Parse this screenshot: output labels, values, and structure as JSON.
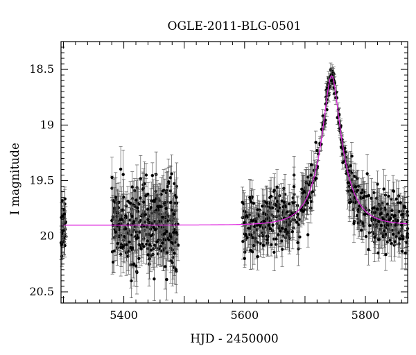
{
  "chart_data": {
    "type": "scatter",
    "title": "OGLE-2011-BLG-0501",
    "xlabel": "HJD - 2450000",
    "ylabel": "I magnitude",
    "xlim": [
      5296,
      5870
    ],
    "ylim": [
      20.6,
      18.25
    ],
    "y_inverted": true,
    "xticks": [
      5400,
      5600,
      5800
    ],
    "yticks": [
      18.5,
      19,
      19.5,
      20,
      20.5
    ],
    "xtick_labels": [
      "5400",
      "5600",
      "5800"
    ],
    "ytick_labels": [
      "18.5",
      "19",
      "19.5",
      "20",
      "20.5"
    ],
    "grid": false,
    "legend": "none",
    "series": [
      {
        "kind": "points-with-errorbars",
        "color": "#000000",
        "observing_seasons": [
          {
            "x_range": [
              5296,
              5304
            ],
            "mag_range": [
              19.75,
              20.15
            ],
            "typical_error": 0.1
          },
          {
            "x_range": [
              5380,
              5490
            ],
            "mag_range": [
              19.55,
              20.45
            ],
            "typical_error": 0.15
          },
          {
            "x_range": [
              5595,
              5870
            ],
            "baseline_mag": 19.85,
            "typical_error": 0.12
          }
        ],
        "points": [
          {
            "x": 5300,
            "y": 19.95
          },
          {
            "x": 5382,
            "y": 19.9
          },
          {
            "x": 5395,
            "y": 20.1
          },
          {
            "x": 5410,
            "y": 19.7
          },
          {
            "x": 5425,
            "y": 20.2
          },
          {
            "x": 5440,
            "y": 19.85
          },
          {
            "x": 5455,
            "y": 20.05
          },
          {
            "x": 5470,
            "y": 19.75
          },
          {
            "x": 5487,
            "y": 19.65
          },
          {
            "x": 5600,
            "y": 20.2
          },
          {
            "x": 5640,
            "y": 19.9
          },
          {
            "x": 5680,
            "y": 19.7
          },
          {
            "x": 5710,
            "y": 19.45
          },
          {
            "x": 5730,
            "y": 19.0
          },
          {
            "x": 5744,
            "y": 18.6
          },
          {
            "x": 5760,
            "y": 19.2
          },
          {
            "x": 5780,
            "y": 19.6
          },
          {
            "x": 5800,
            "y": 19.8
          },
          {
            "x": 5830,
            "y": 19.85
          },
          {
            "x": 5860,
            "y": 19.9
          }
        ]
      },
      {
        "kind": "model-curve",
        "color": "#dd22dd",
        "model": {
          "t0": 5744,
          "u0": 0.3,
          "tE": 37,
          "baseline_mag": 19.9
        }
      }
    ]
  }
}
